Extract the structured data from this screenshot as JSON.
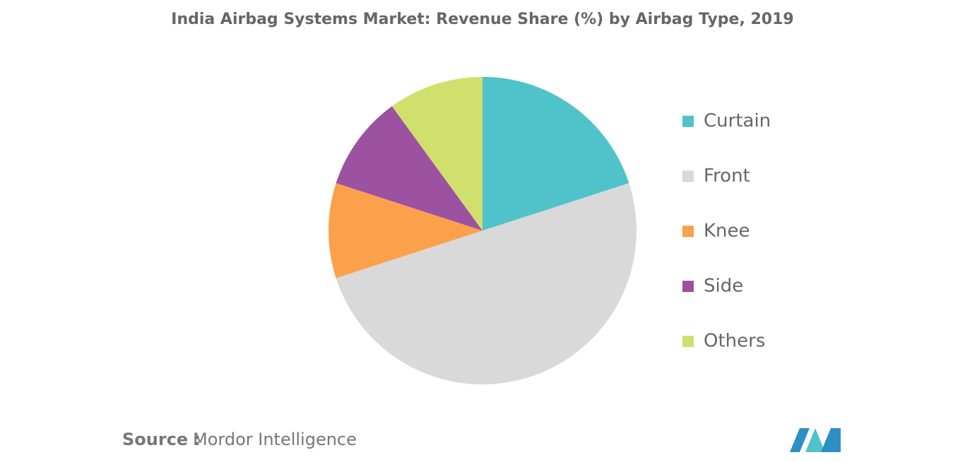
{
  "chart_data": {
    "type": "pie",
    "title": "India Airbag Systems Market: Revenue Share (%) by Airbag Type, 2019",
    "categories": [
      "Curtain",
      "Front",
      "Knee",
      "Side",
      "Others"
    ],
    "values": [
      20,
      50,
      10,
      10,
      10
    ],
    "colors": [
      "#4fc3c9",
      "#d9d9d9",
      "#fba14b",
      "#9c52a0",
      "#d0e06c"
    ],
    "legend": "right"
  },
  "footer": {
    "source_label": "Source :",
    "source": "Mordor Intelligence"
  }
}
